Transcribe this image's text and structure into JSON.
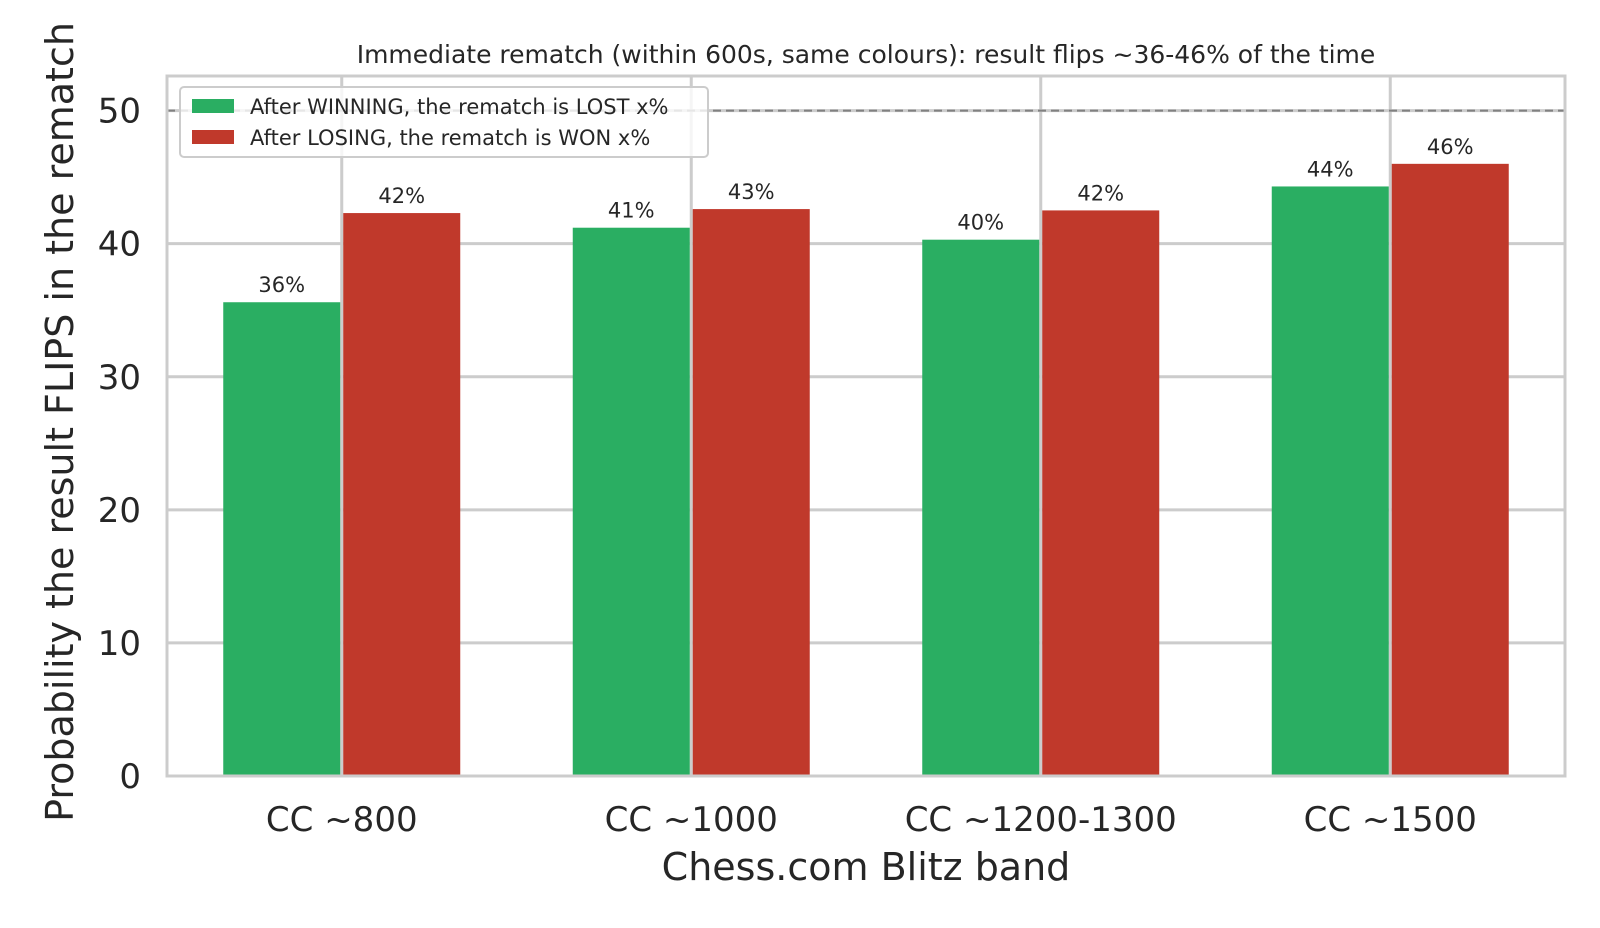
{
  "chart_data": {
    "type": "bar",
    "title": "Immediate rematch (within 600s, same colours): result flips ~36-46% of the time",
    "xlabel": "Chess.com Blitz band",
    "ylabel": "Probability the result FLIPS in the rematch",
    "categories": [
      "CC ~800",
      "CC ~1000",
      "CC ~1200-1300",
      "CC ~1500"
    ],
    "series": [
      {
        "name": "After WINNING, the rematch is LOST x%",
        "color": "#2aae62",
        "values": [
          35.6,
          41.2,
          40.3,
          44.3
        ],
        "labels": [
          "36%",
          "41%",
          "40%",
          "44%"
        ]
      },
      {
        "name": "After LOSING, the rematch is WON x%",
        "color": "#c0392b",
        "values": [
          42.3,
          42.6,
          42.5,
          46.0
        ],
        "labels": [
          "42%",
          "43%",
          "42%",
          "46%"
        ]
      }
    ],
    "ylim": [
      0,
      52.6
    ],
    "yticks": [
      "0",
      "10",
      "20",
      "30",
      "40",
      "50"
    ],
    "reference_line": {
      "y": 50,
      "style": "dashed",
      "color": "#808080"
    },
    "grid": true,
    "legend_position": "top-left"
  }
}
